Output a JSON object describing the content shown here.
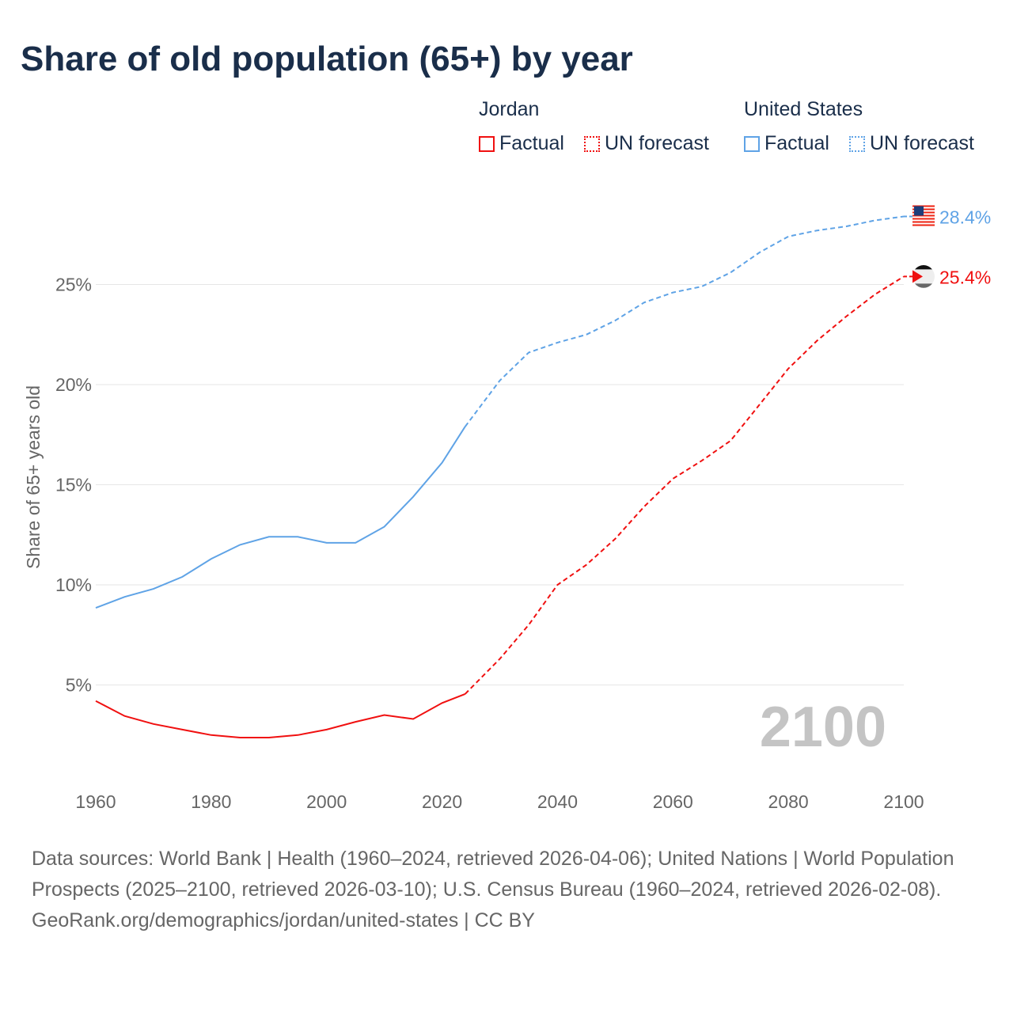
{
  "title": "Share of old population (65+) by year",
  "legend": {
    "groups": [
      {
        "name": "Jordan",
        "color": "#f01010",
        "items": [
          "Factual",
          "UN forecast"
        ]
      },
      {
        "name": "United States",
        "color": "#5fa3e6",
        "items": [
          "Factual",
          "UN forecast"
        ]
      }
    ]
  },
  "year_watermark": "2100",
  "source": "Data sources: World Bank | Health (1960–2024, retrieved 2026-04-06); United Nations | World Population Prospects (2025–2100, retrieved 2026-03-10); U.S. Census Bureau (1960–2024, retrieved 2026-02-08).",
  "credit": "GeoRank.org/demographics/jordan/united-states | CC BY",
  "chart_data": {
    "type": "line",
    "title": "Share of old population (65+) by year",
    "xlabel": "",
    "ylabel": "Share of 65+ years old",
    "xlim": [
      1960,
      2100
    ],
    "ylim": [
      0,
      30
    ],
    "xticks": [
      1960,
      1980,
      2000,
      2020,
      2040,
      2060,
      2080,
      2100
    ],
    "yticks": [
      5,
      10,
      15,
      20,
      25
    ],
    "ytick_labels": [
      "5%",
      "10%",
      "15%",
      "20%",
      "25%"
    ],
    "forecast_start": 2024,
    "x": [
      1960,
      1965,
      1970,
      1975,
      1980,
      1985,
      1990,
      1995,
      2000,
      2005,
      2010,
      2015,
      2020,
      2024,
      2030,
      2035,
      2040,
      2045,
      2050,
      2055,
      2060,
      2065,
      2070,
      2075,
      2080,
      2085,
      2090,
      2095,
      2100
    ],
    "series": [
      {
        "name": "United States",
        "color": "#5fa3e6",
        "end_label": "28.4%",
        "values": [
          8.85,
          9.4,
          9.8,
          10.4,
          11.3,
          12.0,
          12.4,
          12.4,
          12.1,
          12.1,
          12.9,
          14.4,
          16.1,
          17.9,
          20.2,
          21.6,
          22.1,
          22.5,
          23.2,
          24.1,
          24.6,
          24.9,
          25.6,
          26.6,
          27.4,
          27.7,
          27.9,
          28.2,
          28.4
        ]
      },
      {
        "name": "Jordan",
        "color": "#f01010",
        "end_label": "25.4%",
        "values": [
          4.2,
          3.45,
          3.05,
          2.77,
          2.5,
          2.37,
          2.37,
          2.5,
          2.77,
          3.16,
          3.5,
          3.3,
          4.1,
          4.55,
          6.3,
          8.0,
          10.0,
          11.0,
          12.3,
          13.9,
          15.3,
          16.2,
          17.2,
          19.0,
          20.8,
          22.2,
          23.4,
          24.5,
          25.4
        ]
      }
    ]
  }
}
